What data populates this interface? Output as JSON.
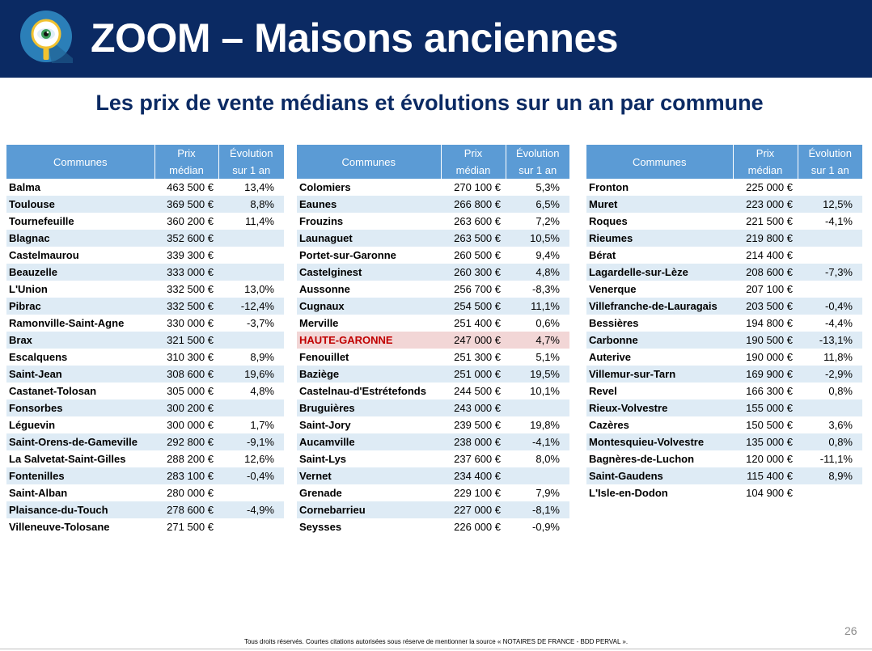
{
  "header": {
    "title": "ZOOM – Maisons anciennes",
    "logo_icon": "magnifier-eye-icon",
    "background_color": "#0b2a63"
  },
  "subtitle": "Les prix de vente médians et évolutions sur un an par commune",
  "columns": {
    "commune": "Communes",
    "price_line1": "Prix",
    "price_line2": "médian",
    "evol_line1": "Évolution",
    "evol_line2": "sur 1 an"
  },
  "tables": [
    {
      "rows": [
        {
          "name": "Balma",
          "price": "463 500 €",
          "evol": "13,4%"
        },
        {
          "name": "Toulouse",
          "price": "369 500 €",
          "evol": "8,8%"
        },
        {
          "name": "Tournefeuille",
          "price": "360 200 €",
          "evol": "11,4%"
        },
        {
          "name": "Blagnac",
          "price": "352 600 €",
          "evol": ""
        },
        {
          "name": "Castelmaurou",
          "price": "339 300 €",
          "evol": ""
        },
        {
          "name": "Beauzelle",
          "price": "333 000 €",
          "evol": ""
        },
        {
          "name": "L'Union",
          "price": "332 500 €",
          "evol": "13,0%"
        },
        {
          "name": "Pibrac",
          "price": "332 500 €",
          "evol": "-12,4%"
        },
        {
          "name": "Ramonville-Saint-Agne",
          "price": "330 000 €",
          "evol": "-3,7%"
        },
        {
          "name": "Brax",
          "price": "321 500 €",
          "evol": ""
        },
        {
          "name": "Escalquens",
          "price": "310 300 €",
          "evol": "8,9%"
        },
        {
          "name": "Saint-Jean",
          "price": "308 600 €",
          "evol": "19,6%"
        },
        {
          "name": "Castanet-Tolosan",
          "price": "305 000 €",
          "evol": "4,8%"
        },
        {
          "name": "Fonsorbes",
          "price": "300 200 €",
          "evol": ""
        },
        {
          "name": "Léguevin",
          "price": "300 000 €",
          "evol": "1,7%"
        },
        {
          "name": "Saint-Orens-de-Gameville",
          "price": "292 800 €",
          "evol": "-9,1%"
        },
        {
          "name": "La Salvetat-Saint-Gilles",
          "price": "288 200 €",
          "evol": "12,6%"
        },
        {
          "name": "Fontenilles",
          "price": "283 100 €",
          "evol": "-0,4%"
        },
        {
          "name": "Saint-Alban",
          "price": "280 000 €",
          "evol": ""
        },
        {
          "name": "Plaisance-du-Touch",
          "price": "278 600 €",
          "evol": "-4,9%"
        },
        {
          "name": "Villeneuve-Tolosane",
          "price": "271 500 €",
          "evol": ""
        }
      ]
    },
    {
      "rows": [
        {
          "name": "Colomiers",
          "price": "270 100 €",
          "evol": "5,3%"
        },
        {
          "name": "Eaunes",
          "price": "266 800 €",
          "evol": "6,5%"
        },
        {
          "name": "Frouzins",
          "price": "263 600 €",
          "evol": "7,2%"
        },
        {
          "name": "Launaguet",
          "price": "263 500 €",
          "evol": "10,5%"
        },
        {
          "name": "Portet-sur-Garonne",
          "price": "260 500 €",
          "evol": "9,4%"
        },
        {
          "name": "Castelginest",
          "price": "260 300 €",
          "evol": "4,8%"
        },
        {
          "name": "Aussonne",
          "price": "256 700 €",
          "evol": "-8,3%"
        },
        {
          "name": "Cugnaux",
          "price": "254 500 €",
          "evol": "11,1%"
        },
        {
          "name": "Merville",
          "price": "251 400 €",
          "evol": "0,6%"
        },
        {
          "name": "HAUTE-GARONNE",
          "price": "247 000 €",
          "evol": "4,7%",
          "highlight": true
        },
        {
          "name": "Fenouillet",
          "price": "251 300 €",
          "evol": "5,1%"
        },
        {
          "name": "Baziège",
          "price": "251 000 €",
          "evol": "19,5%"
        },
        {
          "name": "Castelnau-d'Estrétefonds",
          "price": "244 500 €",
          "evol": "10,1%"
        },
        {
          "name": "Bruguières",
          "price": "243 000 €",
          "evol": ""
        },
        {
          "name": "Saint-Jory",
          "price": "239 500 €",
          "evol": "19,8%"
        },
        {
          "name": "Aucamville",
          "price": "238 000 €",
          "evol": "-4,1%"
        },
        {
          "name": "Saint-Lys",
          "price": "237 600 €",
          "evol": "8,0%"
        },
        {
          "name": "Vernet",
          "price": "234 400 €",
          "evol": ""
        },
        {
          "name": "Grenade",
          "price": "229 100 €",
          "evol": "7,9%"
        },
        {
          "name": "Cornebarrieu",
          "price": "227 000 €",
          "evol": "-8,1%"
        },
        {
          "name": "Seysses",
          "price": "226 000 €",
          "evol": "-0,9%"
        }
      ]
    },
    {
      "rows": [
        {
          "name": "Fronton",
          "price": "225 000 €",
          "evol": ""
        },
        {
          "name": "Muret",
          "price": "223 000 €",
          "evol": "12,5%"
        },
        {
          "name": "Roques",
          "price": "221 500 €",
          "evol": "-4,1%"
        },
        {
          "name": "Rieumes",
          "price": "219 800 €",
          "evol": ""
        },
        {
          "name": "Bérat",
          "price": "214 400 €",
          "evol": ""
        },
        {
          "name": "Lagardelle-sur-Lèze",
          "price": "208 600 €",
          "evol": "-7,3%"
        },
        {
          "name": "Venerque",
          "price": "207 100 €",
          "evol": ""
        },
        {
          "name": "Villefranche-de-Lauragais",
          "price": "203 500 €",
          "evol": "-0,4%"
        },
        {
          "name": "Bessières",
          "price": "194 800 €",
          "evol": "-4,4%"
        },
        {
          "name": "Carbonne",
          "price": "190 500 €",
          "evol": "-13,1%"
        },
        {
          "name": "Auterive",
          "price": "190 000 €",
          "evol": "11,8%"
        },
        {
          "name": "Villemur-sur-Tarn",
          "price": "169 900 €",
          "evol": "-2,9%"
        },
        {
          "name": "Revel",
          "price": "166 300 €",
          "evol": "0,8%"
        },
        {
          "name": "Rieux-Volvestre",
          "price": "155 000 €",
          "evol": ""
        },
        {
          "name": "Cazères",
          "price": "150 500 €",
          "evol": "3,6%"
        },
        {
          "name": "Montesquieu-Volvestre",
          "price": "135 000 €",
          "evol": "0,8%"
        },
        {
          "name": "Bagnères-de-Luchon",
          "price": "120 000 €",
          "evol": "-11,1%"
        },
        {
          "name": "Saint-Gaudens",
          "price": "115 400 €",
          "evol": "8,9%"
        },
        {
          "name": "L'Isle-en-Dodon",
          "price": "104 900 €",
          "evol": ""
        }
      ]
    }
  ],
  "colors": {
    "header_fill": "#5b9bd5",
    "row_alt": "#deebf5",
    "highlight_fill": "#f2d6d6",
    "highlight_text": "#c00000"
  },
  "page_number": "26",
  "footer_note": "Tous droits réservés. Courtes citations autorisées sous réserve de mentionner la source « NOTAIRES DE FRANCE - BDD PERVAL »."
}
